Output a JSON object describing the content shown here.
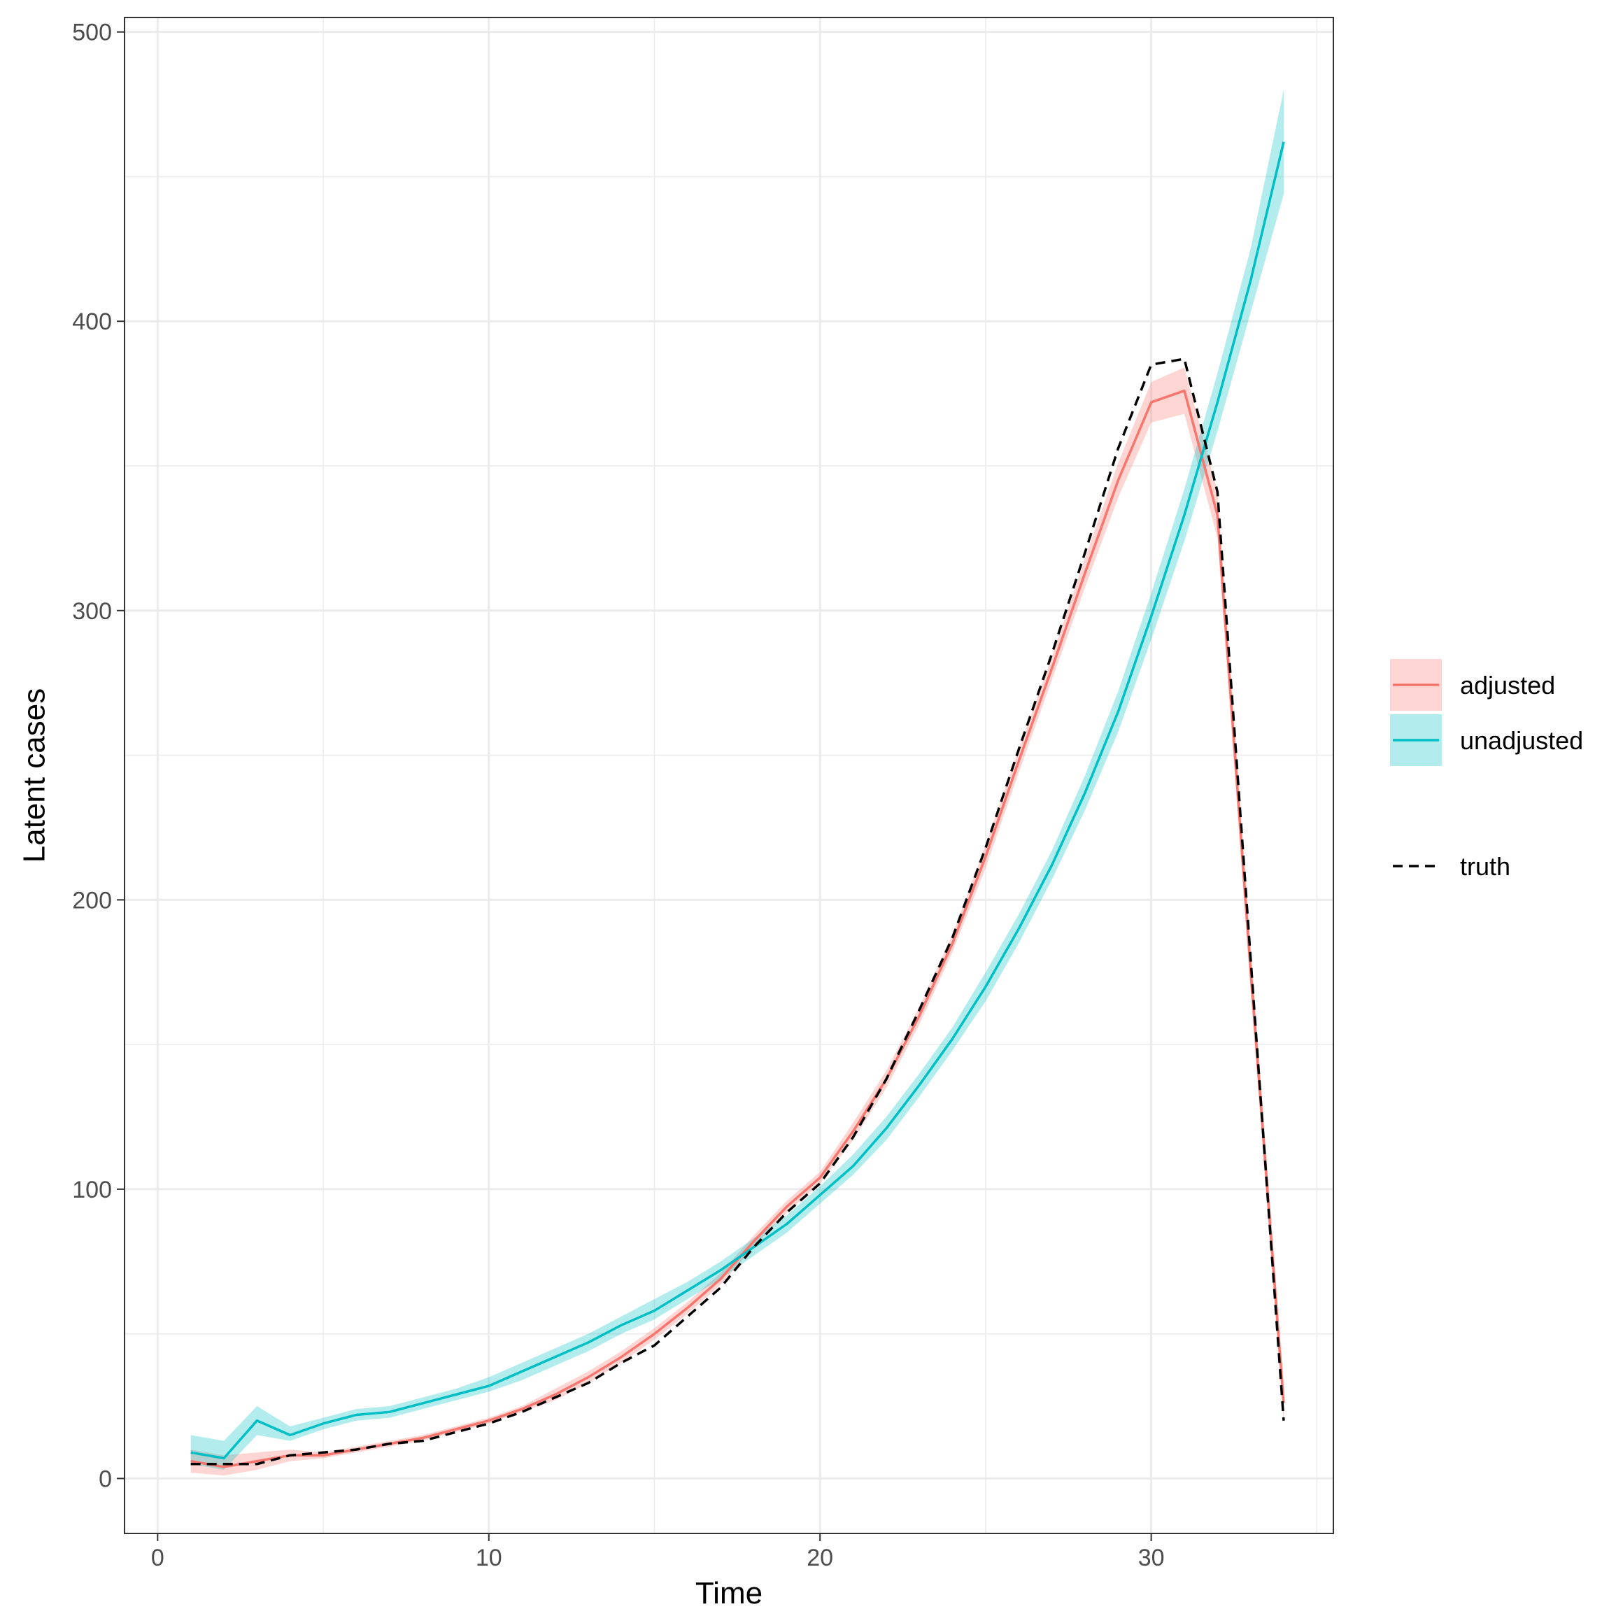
{
  "chart_data": {
    "type": "line",
    "title": "",
    "xlabel": "Time",
    "ylabel": "Latent cases",
    "xlim": [
      -1,
      35.5
    ],
    "ylim": [
      -19,
      505
    ],
    "x_ticks": [
      0,
      10,
      20,
      30
    ],
    "x_tick_labels": [
      "0",
      "10",
      "20",
      "30"
    ],
    "y_ticks": [
      0,
      100,
      200,
      300,
      400,
      500
    ],
    "y_tick_labels": [
      "0",
      "100",
      "200",
      "300",
      "400",
      "500"
    ],
    "grid": true,
    "legend_position": "right",
    "x": [
      1,
      2,
      3,
      4,
      5,
      6,
      7,
      8,
      9,
      10,
      11,
      12,
      13,
      14,
      15,
      16,
      17,
      18,
      19,
      20,
      21,
      22,
      23,
      24,
      25,
      26,
      27,
      28,
      29,
      30,
      31,
      32,
      33,
      34
    ],
    "series": [
      {
        "name": "adjusted",
        "color": "#F8766D",
        "values": [
          6,
          4,
          6,
          8,
          8,
          10,
          12,
          14,
          17,
          20,
          24,
          29,
          35,
          42,
          50,
          59,
          69,
          82,
          94,
          104,
          120,
          138,
          160,
          185,
          215,
          248,
          280,
          313,
          345,
          372,
          376,
          333,
          176,
          26
        ],
        "lower": [
          2,
          1,
          3,
          6,
          7,
          9,
          11,
          13,
          16,
          19,
          23,
          27,
          33,
          40,
          48,
          57,
          67,
          80,
          92,
          102,
          117,
          135,
          157,
          182,
          211,
          244,
          276,
          308,
          339,
          365,
          368,
          325,
          168,
          19
        ],
        "upper": [
          10,
          8,
          9,
          10,
          9,
          11,
          13,
          15,
          18,
          21,
          25,
          31,
          37,
          44,
          52,
          61,
          71,
          84,
          96,
          106,
          123,
          141,
          163,
          188,
          219,
          252,
          284,
          318,
          351,
          379,
          384,
          341,
          184,
          33
        ]
      },
      {
        "name": "unadjusted",
        "color": "#00BFC4",
        "values": [
          9,
          7,
          20,
          15,
          19,
          22,
          23,
          26,
          29,
          32,
          37,
          42,
          47,
          53,
          58,
          65,
          72,
          80,
          88,
          98,
          108,
          121,
          136,
          152,
          170,
          190,
          212,
          237,
          265,
          298,
          333,
          372,
          414,
          462
        ],
        "lower": [
          5,
          3,
          15,
          13,
          17,
          20,
          21,
          24,
          27,
          30,
          34,
          39,
          44,
          50,
          55,
          62,
          69,
          77,
          85,
          95,
          105,
          117,
          132,
          148,
          165,
          185,
          207,
          231,
          258,
          290,
          324,
          362,
          403,
          444
        ],
        "upper": [
          15,
          13,
          25,
          18,
          21,
          24,
          25,
          28,
          31,
          35,
          40,
          45,
          50,
          56,
          62,
          68,
          75,
          83,
          91,
          101,
          112,
          125,
          140,
          156,
          175,
          195,
          217,
          243,
          272,
          306,
          342,
          382,
          425,
          480
        ]
      },
      {
        "name": "truth",
        "color": "#000000",
        "line_style": "dashed",
        "values": [
          5,
          5,
          5,
          8,
          9,
          10,
          12,
          13,
          16,
          19,
          23,
          28,
          33,
          40,
          46,
          56,
          66,
          80,
          92,
          102,
          118,
          138,
          162,
          187,
          218,
          252,
          285,
          320,
          356,
          385,
          387,
          341,
          180,
          20
        ]
      }
    ]
  }
}
